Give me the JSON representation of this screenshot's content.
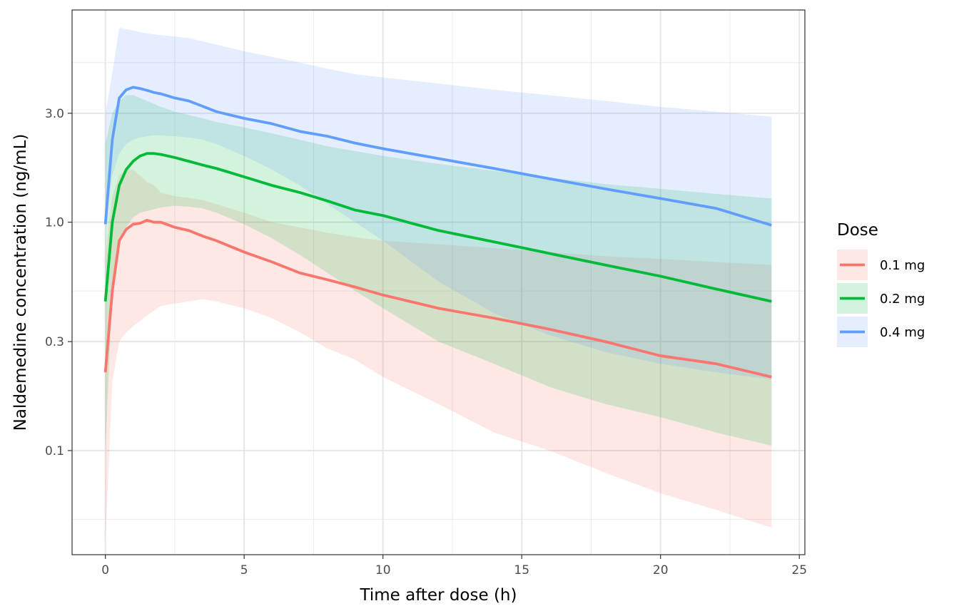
{
  "chart_data": {
    "type": "line",
    "xlabel": "Time after dose (h)",
    "ylabel": "Naldemedine concentration (ng/mL)",
    "y_scale": "log10",
    "xlim": [
      -1.2,
      25.2
    ],
    "ylim": [
      0.035,
      8.5
    ],
    "x_ticks": [
      0,
      5,
      10,
      15,
      20,
      25
    ],
    "x_tick_labels": [
      "0",
      "5",
      "10",
      "15",
      "20",
      "25"
    ],
    "y_ticks": [
      0.1,
      0.3,
      1.0,
      3.0
    ],
    "y_tick_labels": [
      "0.1",
      "0.3",
      "1.0",
      "3.0"
    ],
    "y_minor_ticks": [
      0.05,
      0.5,
      5.0
    ],
    "grid": true,
    "legend": {
      "title": "Dose",
      "placement": "right"
    },
    "series": [
      {
        "name": "0.1 mg",
        "color": "#F8766D",
        "x": [
          0,
          0.25,
          0.5,
          0.75,
          1,
          1.25,
          1.5,
          1.75,
          2,
          2.5,
          3,
          3.5,
          4,
          5,
          6,
          7,
          8,
          9,
          10,
          12,
          14,
          16,
          18,
          20,
          22,
          24
        ],
        "y": [
          0.22,
          0.5,
          0.83,
          0.93,
          0.98,
          0.99,
          1.02,
          1.0,
          1.0,
          0.95,
          0.92,
          0.87,
          0.83,
          0.74,
          0.67,
          0.6,
          0.56,
          0.52,
          0.48,
          0.42,
          0.38,
          0.34,
          0.3,
          0.26,
          0.24,
          0.21
        ],
        "lower": [
          0.04,
          0.2,
          0.3,
          0.33,
          0.35,
          0.37,
          0.39,
          0.41,
          0.43,
          0.44,
          0.45,
          0.46,
          0.45,
          0.42,
          0.38,
          0.33,
          0.28,
          0.25,
          0.21,
          0.16,
          0.12,
          0.1,
          0.08,
          0.065,
          0.055,
          0.046
        ],
        "upper": [
          0.7,
          1.3,
          1.6,
          1.7,
          1.7,
          1.6,
          1.5,
          1.45,
          1.35,
          1.3,
          1.28,
          1.25,
          1.2,
          1.1,
          1.0,
          0.95,
          0.9,
          0.86,
          0.83,
          0.8,
          0.77,
          0.74,
          0.71,
          0.69,
          0.67,
          0.65
        ]
      },
      {
        "name": "0.2 mg",
        "color": "#00BA38",
        "x": [
          0,
          0.25,
          0.5,
          0.75,
          1,
          1.25,
          1.5,
          1.75,
          2,
          2.5,
          3,
          3.5,
          4,
          5,
          6,
          7,
          8,
          9,
          10,
          12,
          14,
          16,
          18,
          20,
          22,
          24
        ],
        "y": [
          0.45,
          1.0,
          1.45,
          1.7,
          1.85,
          1.95,
          2.0,
          2.0,
          1.98,
          1.92,
          1.85,
          1.78,
          1.72,
          1.58,
          1.45,
          1.35,
          1.24,
          1.13,
          1.07,
          0.92,
          0.82,
          0.73,
          0.65,
          0.58,
          0.51,
          0.45
        ],
        "lower": [
          0.1,
          0.5,
          0.8,
          0.95,
          1.05,
          1.1,
          1.12,
          1.14,
          1.16,
          1.18,
          1.17,
          1.15,
          1.1,
          0.98,
          0.85,
          0.72,
          0.6,
          0.5,
          0.42,
          0.3,
          0.24,
          0.19,
          0.16,
          0.14,
          0.12,
          0.105
        ],
        "upper": [
          2.2,
          3.0,
          3.4,
          3.6,
          3.6,
          3.5,
          3.4,
          3.3,
          3.2,
          3.05,
          2.95,
          2.85,
          2.75,
          2.6,
          2.45,
          2.3,
          2.15,
          2.05,
          1.95,
          1.8,
          1.68,
          1.57,
          1.47,
          1.4,
          1.33,
          1.27
        ]
      },
      {
        "name": "0.4 mg",
        "color": "#619CFF",
        "x": [
          0,
          0.25,
          0.5,
          0.75,
          1,
          1.25,
          1.5,
          1.75,
          2,
          2.5,
          3,
          3.5,
          4,
          5,
          6,
          7,
          8,
          9,
          10,
          12,
          14,
          16,
          18,
          20,
          22,
          24
        ],
        "y": [
          0.98,
          2.3,
          3.5,
          3.8,
          3.9,
          3.85,
          3.78,
          3.7,
          3.65,
          3.5,
          3.4,
          3.22,
          3.05,
          2.85,
          2.7,
          2.5,
          2.38,
          2.22,
          2.1,
          1.9,
          1.72,
          1.55,
          1.4,
          1.27,
          1.15,
          0.97
        ],
        "lower": [
          0.98,
          1.6,
          2.0,
          2.2,
          2.3,
          2.35,
          2.38,
          2.4,
          2.4,
          2.38,
          2.35,
          2.3,
          2.2,
          1.95,
          1.7,
          1.45,
          1.2,
          1.0,
          0.83,
          0.55,
          0.4,
          0.32,
          0.27,
          0.24,
          0.22,
          0.205
        ],
        "upper": [
          3.0,
          4.5,
          7.1,
          7.0,
          6.9,
          6.8,
          6.7,
          6.65,
          6.6,
          6.5,
          6.4,
          6.2,
          6.0,
          5.6,
          5.3,
          5.0,
          4.7,
          4.45,
          4.3,
          4.05,
          3.8,
          3.6,
          3.4,
          3.2,
          3.05,
          2.9
        ]
      }
    ]
  }
}
